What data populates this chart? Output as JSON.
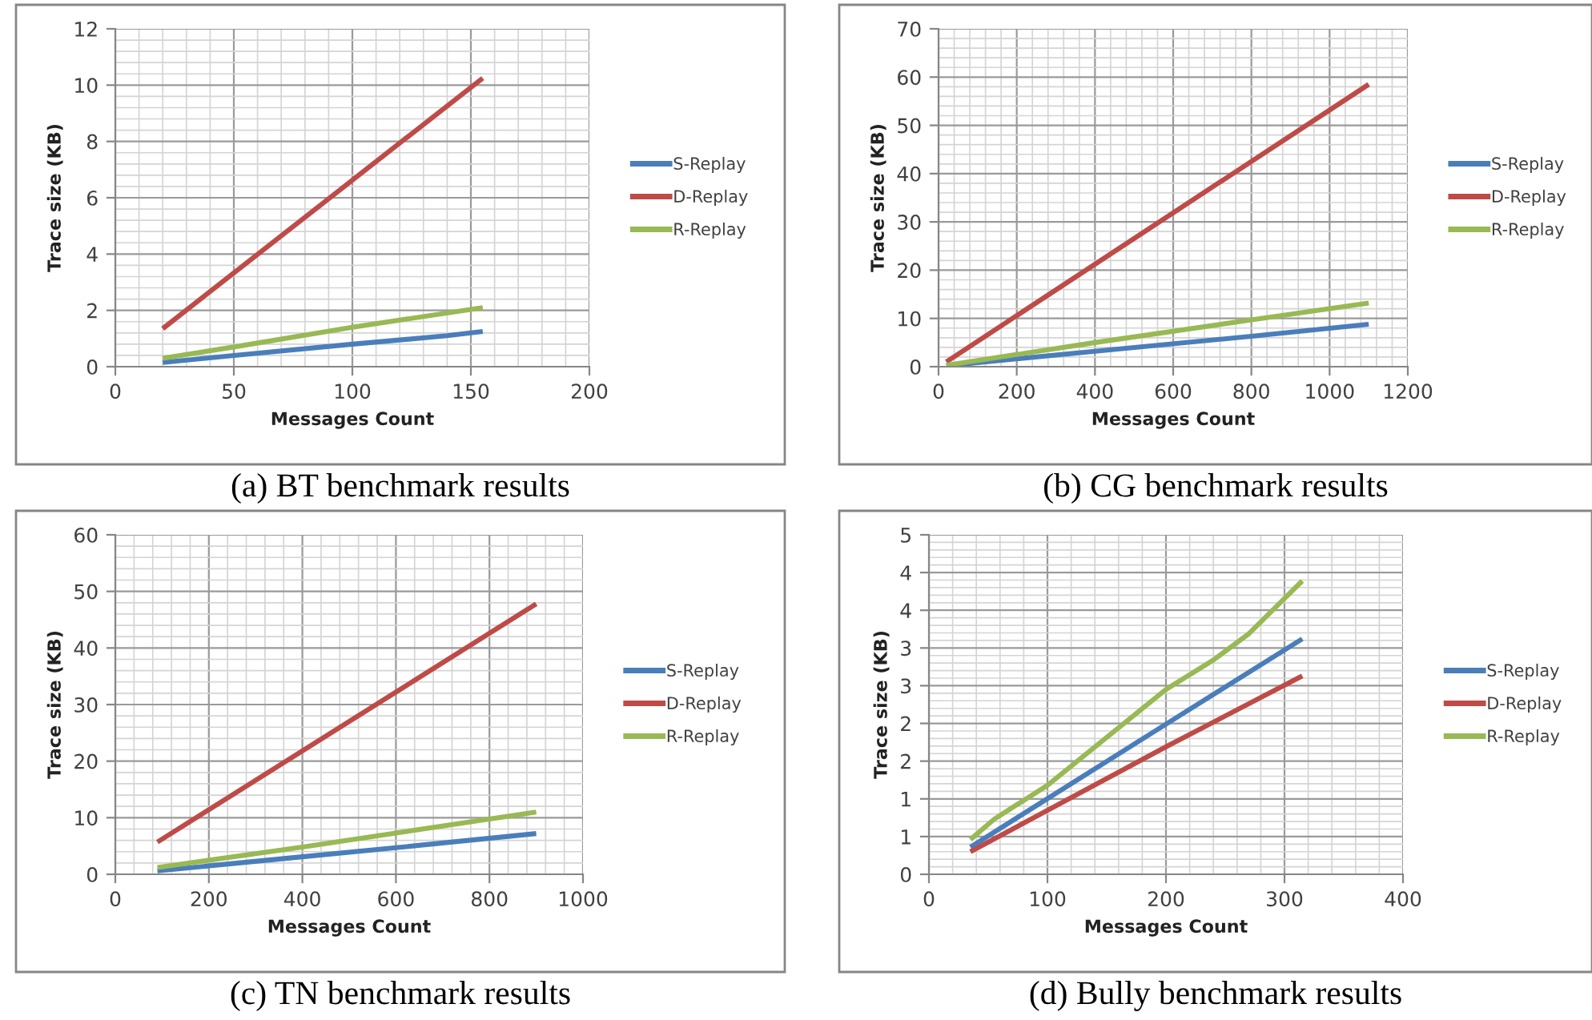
{
  "chart_data": [
    {
      "type": "line",
      "title": "(a) BT benchmark results",
      "xlabel": "Messages Count",
      "ylabel": "Trace size (KB)",
      "xlim": [
        0,
        200
      ],
      "xticks": [
        0,
        50,
        100,
        150,
        200
      ],
      "ylim": [
        0,
        12
      ],
      "yticks": [
        0,
        2,
        4,
        6,
        8,
        10,
        12
      ],
      "grid": true,
      "legend": "right",
      "marker": "none",
      "line_style": "solid",
      "series": [
        {
          "name": "S-Replay",
          "color": "#4a7ebb",
          "x": [
            20,
            50,
            100,
            140,
            155
          ],
          "values": [
            0.15,
            0.4,
            0.8,
            1.1,
            1.25
          ]
        },
        {
          "name": "D-Replay",
          "color": "#be4b48",
          "x": [
            20,
            155
          ],
          "values": [
            1.35,
            10.25
          ]
        },
        {
          "name": "R-Replay",
          "color": "#98b954",
          "x": [
            20,
            50,
            100,
            155
          ],
          "values": [
            0.3,
            0.7,
            1.4,
            2.1
          ]
        }
      ]
    },
    {
      "type": "line",
      "title": "(b) CG benchmark results",
      "xlabel": "Messages Count",
      "ylabel": "Trace size (KB)",
      "xlim": [
        0,
        1200
      ],
      "xticks": [
        0,
        200,
        400,
        600,
        800,
        1000,
        1200
      ],
      "ylim": [
        0,
        70
      ],
      "yticks": [
        0,
        10,
        20,
        30,
        40,
        50,
        60,
        70
      ],
      "grid": true,
      "legend": "right",
      "marker": "none",
      "line_style": "solid",
      "series": [
        {
          "name": "S-Replay",
          "color": "#4a7ebb",
          "x": [
            20,
            400,
            800,
            1100
          ],
          "values": [
            0.2,
            3.2,
            6.3,
            8.8
          ]
        },
        {
          "name": "D-Replay",
          "color": "#be4b48",
          "x": [
            20,
            1100
          ],
          "values": [
            1,
            58.5
          ]
        },
        {
          "name": "R-Replay",
          "color": "#98b954",
          "x": [
            20,
            400,
            800,
            1100
          ],
          "values": [
            0.3,
            5,
            9.7,
            13.2
          ]
        }
      ]
    },
    {
      "type": "line",
      "title": "(c) TN benchmark results",
      "xlabel": "Messages Count",
      "ylabel": "Trace size (KB)",
      "xlim": [
        0,
        1000
      ],
      "xticks": [
        0,
        200,
        400,
        600,
        800,
        1000
      ],
      "ylim": [
        0,
        60
      ],
      "yticks": [
        0,
        10,
        20,
        30,
        40,
        50,
        60
      ],
      "grid": true,
      "legend": "right",
      "marker": "none",
      "line_style": "solid",
      "series": [
        {
          "name": "S-Replay",
          "color": "#4a7ebb",
          "x": [
            90,
            400,
            600,
            900
          ],
          "values": [
            0.6,
            3.1,
            4.7,
            7.2
          ]
        },
        {
          "name": "D-Replay",
          "color": "#be4b48",
          "x": [
            90,
            900
          ],
          "values": [
            5.7,
            47.8
          ]
        },
        {
          "name": "R-Replay",
          "color": "#98b954",
          "x": [
            90,
            400,
            600,
            900
          ],
          "values": [
            1.2,
            4.8,
            7.3,
            11
          ]
        }
      ]
    },
    {
      "type": "line",
      "title": "(d) Bully benchmark results",
      "xlabel": "Messages Count",
      "ylabel": "Trace size (KB)",
      "xlim": [
        0,
        400
      ],
      "xticks": [
        0,
        100,
        200,
        300,
        400
      ],
      "ylim": [
        0,
        4.5
      ],
      "yticks": [
        0,
        {
          "value": 0.5,
          "label": "1"
        },
        {
          "value": 1,
          "label": "1"
        },
        {
          "value": 1.5,
          "label": "2"
        },
        {
          "value": 2,
          "label": "2"
        },
        {
          "value": 2.5,
          "label": "3"
        },
        {
          "value": 3,
          "label": "3"
        },
        {
          "value": 3.5,
          "label": "4"
        },
        {
          "value": 4,
          "label": "4"
        },
        {
          "value": 4.5,
          "label": "5"
        }
      ],
      "grid": true,
      "legend": "right",
      "marker": "none",
      "line_style": "solid",
      "series": [
        {
          "name": "S-Replay",
          "color": "#4a7ebb",
          "x": [
            35,
            200,
            315
          ],
          "values": [
            0.36,
            1.99,
            3.12
          ]
        },
        {
          "name": "D-Replay",
          "color": "#be4b48",
          "x": [
            35,
            200,
            315
          ],
          "values": [
            0.3,
            1.69,
            2.63
          ]
        },
        {
          "name": "R-Replay",
          "color": "#98b954",
          "x": [
            35,
            55,
            100,
            200,
            240,
            270,
            315
          ],
          "values": [
            0.46,
            0.73,
            1.18,
            2.45,
            2.84,
            3.19,
            3.89
          ]
        }
      ]
    }
  ]
}
